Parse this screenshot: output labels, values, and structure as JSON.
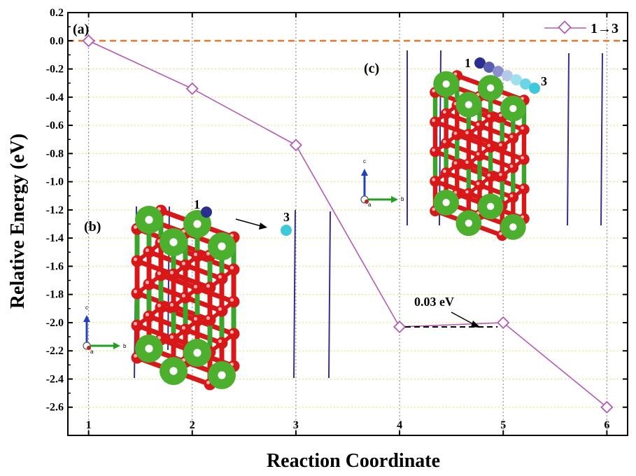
{
  "chart_data": {
    "type": "line",
    "xlabel": "Reaction Coordinate",
    "ylabel": "Relative Energy (eV)",
    "xlim": [
      0.8,
      6.2
    ],
    "ylim": [
      -2.8,
      0.2
    ],
    "x_ticks": [
      1,
      2,
      3,
      4,
      5,
      6
    ],
    "y_ticks": [
      0.2,
      0.0,
      -0.2,
      -0.4,
      -0.6,
      -0.8,
      -1.0,
      -1.2,
      -1.4,
      -1.6,
      -1.8,
      -2.0,
      -2.2,
      -2.4,
      -2.6
    ],
    "y_tick_labels": [
      "0.2",
      "0.0",
      "-0.2",
      "-0.4",
      "-0.6",
      "-0.8",
      "-1.0",
      "-1.2",
      "-1.4",
      "-1.6",
      "-1.8",
      "-2.0",
      "-2.2",
      "-2.4",
      "-2.6"
    ],
    "grid": true,
    "legend_position": "top-right",
    "reference_line": {
      "y": 0.0,
      "color": "#f07020",
      "style": "dashed"
    },
    "series": [
      {
        "name": "1→3",
        "color": "#b45ab4",
        "marker": "diamond",
        "x": [
          1,
          2,
          3,
          4,
          5,
          6
        ],
        "y": [
          0.0,
          -0.34,
          -0.74,
          -2.03,
          -2.0,
          -2.6
        ]
      }
    ],
    "annotations": {
      "panel_a": "(a)",
      "panel_b": "(b)",
      "panel_c": "(c)",
      "barrier_label": "0.03 eV",
      "barrier_from": {
        "x": 4,
        "y": -2.03
      },
      "barrier_to": {
        "x": 5,
        "y": -2.0
      },
      "inset_b_site_start": "1",
      "inset_b_site_end": "3",
      "inset_c_site_start": "1",
      "inset_c_site_end": "3",
      "axis_c": "c",
      "axis_b": "b",
      "axis_a": "a"
    },
    "colors": {
      "metal_atom": "#4caf2e",
      "oxygen_atom": "#d81818",
      "bond_green": "#3aa52a",
      "bond_red": "#d81818",
      "cell_line": "#3a2e8c",
      "adatom_start": "#2a2e8c",
      "adatom_end": "#3ec8dc",
      "grid": "#e8e060",
      "vgrid": "#808080",
      "axis_c_arrow": "#2040c0",
      "axis_b_arrow": "#20a020",
      "axis_a_arrow": "#c02020"
    }
  }
}
